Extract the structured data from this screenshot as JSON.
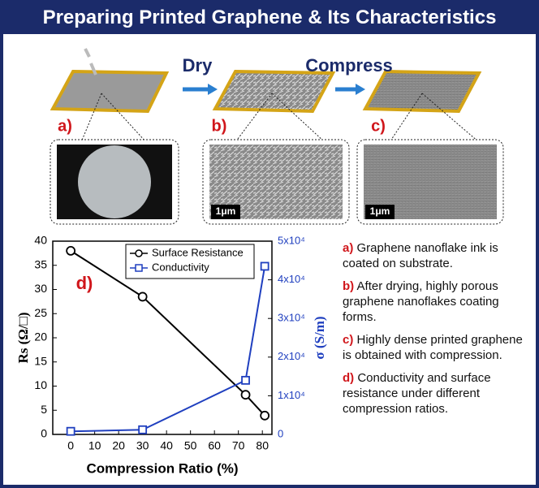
{
  "header": {
    "title": "Preparing Printed Graphene & Its Characteristics"
  },
  "process": {
    "steps": [
      "Dry",
      "Compress"
    ],
    "panels": [
      "a)",
      "b)",
      "c)"
    ],
    "scale_bars": [
      "1μm",
      "1μm"
    ]
  },
  "chart_data": {
    "type": "line",
    "annotation": "d)",
    "x_label": "Compression Ratio (%)",
    "y_label": "Rs (Ω/□)",
    "y2_label": "σ (S/m)",
    "x": [
      0,
      30,
      73,
      81
    ],
    "series": [
      {
        "name": "Surface Resistance",
        "color": "#000000",
        "marker": "circle",
        "values": [
          38,
          28.5,
          8.2,
          3.9
        ]
      },
      {
        "name": "Conductivity",
        "color": "#1f3fbf",
        "marker": "square",
        "axis": "y2",
        "values": [
          800,
          1200,
          14000,
          43500
        ]
      }
    ],
    "xlim": [
      -7.5,
      84
    ],
    "xticks": [
      0,
      10,
      20,
      30,
      40,
      50,
      60,
      70,
      80
    ],
    "ylim": [
      0,
      40
    ],
    "yticks": [
      0,
      5,
      10,
      15,
      20,
      25,
      30,
      35,
      40
    ],
    "y2lim": [
      0,
      50000
    ],
    "y2ticks": [
      0,
      {
        "value": 10000,
        "label": "1x10⁴"
      },
      {
        "value": 20000,
        "label": "2x10⁴"
      },
      {
        "value": 30000,
        "label": "3x10⁴"
      },
      {
        "value": 40000,
        "label": "4x10⁴"
      },
      {
        "value": 50000,
        "label": "5x10⁴"
      }
    ],
    "grid": false,
    "legend": "top"
  },
  "notes": [
    {
      "letter": "a)",
      "text": "Graphene nanoflake ink is coated on substrate."
    },
    {
      "letter": "b)",
      "text": "After drying, highly porous graphene nanoflakes coating forms."
    },
    {
      "letter": "c)",
      "text": "Highly dense printed graphene is obtained with compression."
    },
    {
      "letter": "d)",
      "text": "Conductivity and surface resistance under different compression ratios."
    }
  ]
}
